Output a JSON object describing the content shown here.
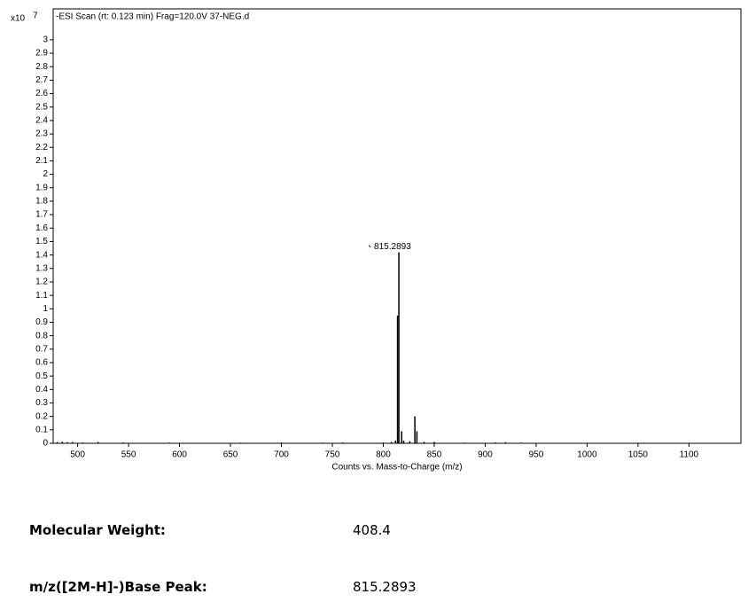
{
  "chart_data": {
    "type": "stick",
    "title": "-ESI Scan (rt: 0.123 min) Frag=120.0V 37-NEG.d",
    "x_label": "Counts vs. Mass-to-Charge (m/z)",
    "y_scale_label": "x10",
    "y_scale_exponent": "7",
    "x": [
      480,
      485,
      490,
      495,
      505,
      520,
      545,
      590,
      660,
      700,
      740,
      760,
      800,
      808,
      812,
      814,
      815.2893,
      818,
      820,
      826,
      831,
      833,
      840,
      850,
      880,
      910,
      920,
      935
    ],
    "values": [
      0.01,
      0.012,
      0.008,
      0.01,
      0.006,
      0.01,
      0.006,
      0.005,
      0.005,
      0.006,
      0.005,
      0.006,
      0.006,
      0.01,
      0.02,
      0.95,
      1.42,
      0.09,
      0.02,
      0.015,
      0.2,
      0.09,
      0.01,
      0.01,
      0.005,
      0.006,
      0.008,
      0.005
    ],
    "color": "#000000",
    "annotation": "815.2893",
    "xlim": [
      476,
      1151
    ],
    "ylim": [
      0,
      3.23
    ],
    "xticks": [
      500,
      550,
      600,
      650,
      700,
      750,
      800,
      850,
      900,
      950,
      1000,
      1050,
      1100
    ],
    "yticks": [
      0,
      0.1,
      0.2,
      0.3,
      0.4,
      0.5,
      0.6,
      0.7,
      0.8,
      0.9,
      1,
      1.1,
      1.2,
      1.3,
      1.4,
      1.5,
      1.6,
      1.7,
      1.8,
      1.9,
      2,
      2.1,
      2.2,
      2.3,
      2.4,
      2.5,
      2.6,
      2.7,
      2.8,
      2.9,
      3
    ]
  },
  "info": {
    "rows": [
      [
        "Molecular Weight:",
        "408.4"
      ],
      [
        "m/z([2M-H]-)Base Peak:",
        "815.2893"
      ]
    ]
  }
}
